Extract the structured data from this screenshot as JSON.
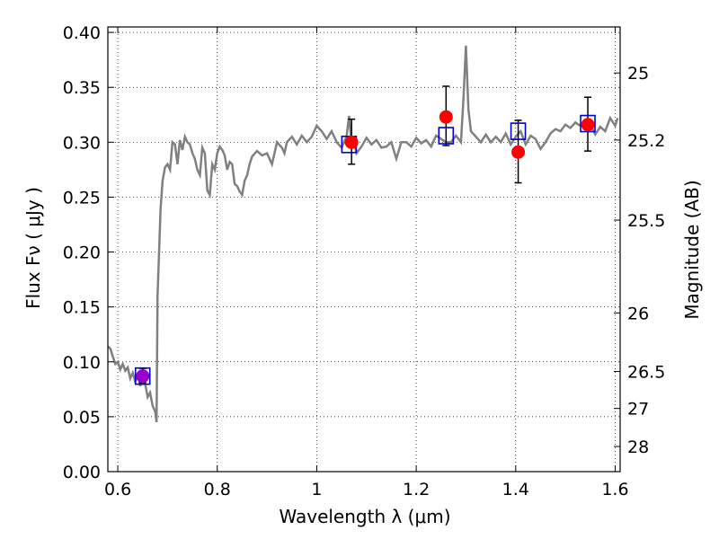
{
  "chart_data": {
    "type": "scatter",
    "title": "",
    "xlabel": "Wavelength  λ (μm)",
    "ylabel": "Flux  Fν  ( μJy )",
    "y2label": "Magnitude (AB)",
    "xlim": [
      0.58,
      1.61
    ],
    "ylim": [
      0.0,
      0.405
    ],
    "grid": true,
    "grid_style": "dotted",
    "x_ticks": [
      0.6,
      0.8,
      1.0,
      1.2,
      1.4,
      1.6
    ],
    "x_tick_labels": [
      "0.6",
      "0.8",
      "1",
      "1.2",
      "1.4",
      "1.6"
    ],
    "y_ticks": [
      0.0,
      0.05,
      0.1,
      0.15,
      0.2,
      0.25,
      0.3,
      0.35,
      0.4
    ],
    "y_tick_labels": [
      "0.00",
      "0.05",
      "0.10",
      "0.15",
      "0.20",
      "0.25",
      "0.30",
      "0.35",
      "0.40"
    ],
    "y2_ticks": [
      25,
      25.2,
      25.5,
      26,
      26.5,
      27,
      28
    ],
    "y2_tick_labels": [
      "25",
      "25.2",
      "25.5",
      "26",
      "26.5",
      "27",
      "28"
    ],
    "colors": {
      "spectrum": "#808080",
      "observed": "#ff0000",
      "model": "#0000cc",
      "first_point": "#9900cc",
      "errorbar": "#000000"
    },
    "spectrum": {
      "x": [
        0.58,
        0.585,
        0.59,
        0.595,
        0.6,
        0.605,
        0.61,
        0.615,
        0.62,
        0.625,
        0.63,
        0.635,
        0.64,
        0.645,
        0.65,
        0.655,
        0.66,
        0.665,
        0.67,
        0.675,
        0.678,
        0.68,
        0.683,
        0.686,
        0.69,
        0.695,
        0.7,
        0.705,
        0.71,
        0.715,
        0.72,
        0.725,
        0.73,
        0.735,
        0.74,
        0.745,
        0.75,
        0.755,
        0.76,
        0.765,
        0.77,
        0.775,
        0.78,
        0.785,
        0.79,
        0.795,
        0.8,
        0.805,
        0.81,
        0.815,
        0.82,
        0.825,
        0.83,
        0.835,
        0.84,
        0.845,
        0.85,
        0.855,
        0.86,
        0.865,
        0.87,
        0.88,
        0.89,
        0.9,
        0.91,
        0.92,
        0.93,
        0.935,
        0.94,
        0.95,
        0.96,
        0.97,
        0.98,
        0.99,
        1.0,
        1.01,
        1.02,
        1.03,
        1.04,
        1.05,
        1.06,
        1.065,
        1.07,
        1.075,
        1.08,
        1.09,
        1.1,
        1.11,
        1.12,
        1.13,
        1.14,
        1.15,
        1.16,
        1.17,
        1.18,
        1.19,
        1.2,
        1.21,
        1.22,
        1.23,
        1.24,
        1.25,
        1.26,
        1.27,
        1.28,
        1.29,
        1.295,
        1.3,
        1.305,
        1.31,
        1.32,
        1.33,
        1.34,
        1.35,
        1.36,
        1.37,
        1.38,
        1.39,
        1.4,
        1.41,
        1.42,
        1.43,
        1.44,
        1.45,
        1.46,
        1.47,
        1.48,
        1.49,
        1.5,
        1.51,
        1.52,
        1.53,
        1.54,
        1.55,
        1.56,
        1.57,
        1.58,
        1.59,
        1.6,
        1.605
      ],
      "y": [
        0.114,
        0.112,
        0.105,
        0.098,
        0.1,
        0.093,
        0.098,
        0.092,
        0.095,
        0.085,
        0.09,
        0.082,
        0.088,
        0.078,
        0.086,
        0.08,
        0.068,
        0.072,
        0.06,
        0.055,
        0.045,
        0.16,
        0.2,
        0.24,
        0.265,
        0.277,
        0.28,
        0.275,
        0.3,
        0.298,
        0.28,
        0.302,
        0.293,
        0.305,
        0.3,
        0.298,
        0.29,
        0.285,
        0.275,
        0.27,
        0.295,
        0.29,
        0.256,
        0.252,
        0.28,
        0.275,
        0.29,
        0.296,
        0.293,
        0.288,
        0.275,
        0.282,
        0.28,
        0.262,
        0.26,
        0.255,
        0.252,
        0.265,
        0.27,
        0.28,
        0.287,
        0.292,
        0.288,
        0.29,
        0.28,
        0.3,
        0.295,
        0.29,
        0.3,
        0.305,
        0.298,
        0.306,
        0.3,
        0.305,
        0.315,
        0.31,
        0.303,
        0.31,
        0.3,
        0.295,
        0.305,
        0.324,
        0.298,
        0.3,
        0.29,
        0.296,
        0.304,
        0.298,
        0.302,
        0.295,
        0.296,
        0.3,
        0.285,
        0.3,
        0.3,
        0.296,
        0.304,
        0.299,
        0.302,
        0.296,
        0.306,
        0.303,
        0.3,
        0.3,
        0.306,
        0.3,
        0.34,
        0.388,
        0.33,
        0.31,
        0.305,
        0.3,
        0.307,
        0.3,
        0.305,
        0.3,
        0.308,
        0.298,
        0.305,
        0.31,
        0.298,
        0.306,
        0.303,
        0.294,
        0.3,
        0.308,
        0.312,
        0.31,
        0.316,
        0.313,
        0.318,
        0.315,
        0.318,
        0.316,
        0.307,
        0.314,
        0.31,
        0.322,
        0.315,
        0.322
      ]
    },
    "observed": {
      "x": [
        0.65,
        1.07,
        1.26,
        1.405,
        1.545
      ],
      "y": [
        0.087,
        0.3,
        0.323,
        0.291,
        0.316
      ],
      "yerr_low": [
        0.081,
        0.28,
        0.297,
        0.263,
        0.292
      ],
      "yerr_high": [
        0.094,
        0.321,
        0.351,
        0.32,
        0.341
      ]
    },
    "model": {
      "x": [
        0.65,
        1.065,
        1.26,
        1.405,
        1.545
      ],
      "y": [
        0.087,
        0.298,
        0.306,
        0.31,
        0.317
      ]
    }
  }
}
